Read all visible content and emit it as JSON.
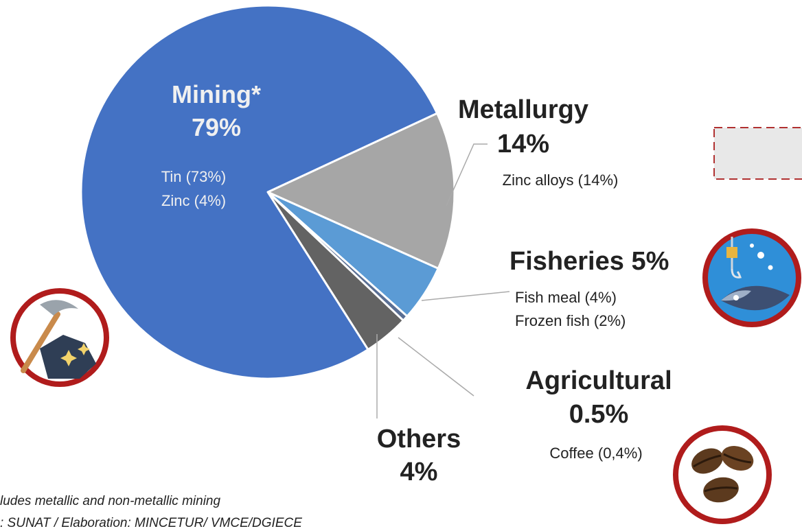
{
  "chart_data": {
    "type": "pie",
    "slices": [
      {
        "label": "Mining*",
        "value": 79,
        "value_label": "79%",
        "details": [
          "Tin (73%)",
          "Zinc (4%)"
        ],
        "color": "#4472c4"
      },
      {
        "label": "Metallurgy",
        "value": 14,
        "value_label": "14%",
        "details": [
          "Zinc alloys (14%)"
        ],
        "color": "#a6a6a6"
      },
      {
        "label": "Fisheries",
        "value": 5,
        "value_label": "5%",
        "details": [
          "Fish meal (4%)",
          "Frozen fish (2%)"
        ],
        "color": "#5b9bd5"
      },
      {
        "label": "Agricultural",
        "value": 0.5,
        "value_label": "0.5%",
        "details": [
          "Coffee (0,4%)"
        ],
        "color": "#5a6f94"
      },
      {
        "label": "Others",
        "value": 4,
        "value_label": "4%",
        "details": [],
        "color": "#636363"
      }
    ]
  },
  "notes": {
    "footnote": "ludes metallic and non-metallic mining",
    "source": ": SUNAT / Elaboration: MINCETUR/ VMCE/DGIECE"
  },
  "icons": {
    "mining": "pickaxe-ore-icon",
    "fisheries": "fish-hook-icon",
    "agricultural": "coffee-beans-icon"
  },
  "colors": {
    "icon_ring": "#b01c1c",
    "legend_box_border": "#b03030",
    "legend_box_fill": "#e8e8e8"
  }
}
